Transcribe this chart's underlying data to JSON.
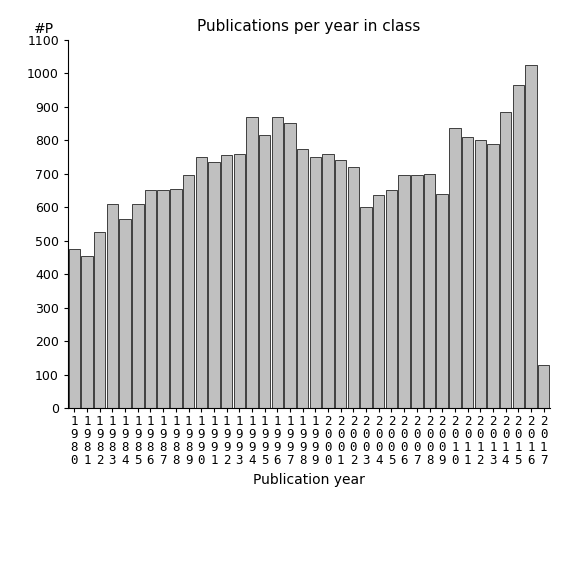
{
  "title": "Publications per year in class",
  "xlabel": "Publication year",
  "ylabel": "#P",
  "years": [
    1980,
    1981,
    1982,
    1983,
    1984,
    1985,
    1986,
    1987,
    1988,
    1989,
    1990,
    1991,
    1992,
    1993,
    1994,
    1995,
    1996,
    1997,
    1998,
    1999,
    2000,
    2001,
    2002,
    2003,
    2004,
    2005,
    2006,
    2007,
    2008,
    2009,
    2010,
    2011,
    2012,
    2013,
    2014,
    2015,
    2016,
    2017
  ],
  "values": [
    475,
    455,
    525,
    610,
    565,
    610,
    650,
    650,
    655,
    695,
    750,
    735,
    755,
    760,
    870,
    815,
    870,
    850,
    775,
    750,
    760,
    740,
    720,
    600,
    635,
    650,
    695,
    695,
    700,
    640,
    835,
    810,
    800,
    790,
    885,
    965,
    1025,
    130
  ],
  "bar_color": "#c0c0c0",
  "bar_edgecolor": "#000000",
  "ylim": [
    0,
    1100
  ],
  "yticks": [
    0,
    100,
    200,
    300,
    400,
    500,
    600,
    700,
    800,
    900,
    1000,
    1100
  ],
  "bg_color": "#ffffff",
  "title_fontsize": 11,
  "axis_fontsize": 10,
  "tick_fontsize": 9
}
